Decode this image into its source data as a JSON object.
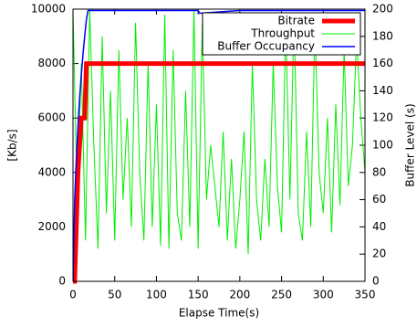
{
  "chart_data": {
    "type": "line",
    "xlabel": "Elapse Time(s)",
    "ylabel": "[Kb/s]",
    "y2label": "Buffer Level (s)",
    "xlim": [
      0,
      350
    ],
    "xticks": [
      0,
      50,
      100,
      150,
      200,
      250,
      300,
      350
    ],
    "ylim": [
      0,
      10000
    ],
    "yticks": [
      0,
      2000,
      4000,
      6000,
      8000,
      10000
    ],
    "y2lim": [
      0,
      200
    ],
    "y2ticks": [
      0,
      20,
      40,
      60,
      80,
      100,
      120,
      140,
      160,
      180,
      200
    ],
    "legend": "top-right",
    "series": [
      {
        "name": "Bitrate",
        "color": "#ff0000",
        "width": 5,
        "x": [
          0,
          2,
          4,
          6,
          8,
          10,
          14,
          16,
          350
        ],
        "values": [
          0,
          0,
          2000,
          4000,
          5000,
          6000,
          6000,
          8000,
          8000
        ]
      },
      {
        "name": "Throughput",
        "color": "#00ee00",
        "width": 1,
        "x": [
          0,
          5,
          10,
          15,
          20,
          25,
          30,
          35,
          40,
          45,
          50,
          55,
          60,
          65,
          70,
          75,
          80,
          85,
          90,
          95,
          100,
          105,
          110,
          115,
          120,
          125,
          130,
          135,
          140,
          145,
          150,
          155,
          160,
          165,
          170,
          175,
          180,
          185,
          190,
          195,
          200,
          205,
          210,
          215,
          220,
          225,
          230,
          235,
          240,
          245,
          250,
          255,
          260,
          265,
          270,
          275,
          280,
          285,
          290,
          295,
          300,
          305,
          310,
          315,
          320,
          325,
          330,
          335,
          340,
          345,
          350
        ],
        "values": [
          10000,
          3000,
          8000,
          1500,
          10000,
          5000,
          1200,
          9000,
          2500,
          7000,
          1500,
          8500,
          3000,
          6000,
          2000,
          9500,
          4000,
          1500,
          8000,
          2000,
          6500,
          1300,
          9800,
          1200,
          8500,
          2500,
          1500,
          7000,
          2000,
          10000,
          1200,
          9500,
          3000,
          5000,
          3500,
          2000,
          5500,
          1500,
          4500,
          1200,
          3000,
          5500,
          1000,
          8000,
          3000,
          1500,
          4500,
          2000,
          8000,
          3500,
          1800,
          9500,
          3000,
          9800,
          2500,
          1500,
          5500,
          2000,
          9500,
          4000,
          2500,
          6000,
          1800,
          6500,
          2800,
          8500,
          3500,
          5000,
          9000,
          6000,
          4000
        ]
      },
      {
        "name": "Buffer Occupancy",
        "color": "#0000ff",
        "width": 1.5,
        "axis": "y2",
        "x": [
          0,
          2,
          4,
          6,
          8,
          10,
          12,
          14,
          16,
          18,
          100,
          150,
          152,
          200,
          250,
          300,
          350
        ],
        "values": [
          0,
          60,
          90,
          115,
          135,
          152,
          167,
          180,
          192,
          199,
          199,
          199,
          197,
          199,
          199,
          199,
          199
        ]
      }
    ]
  }
}
